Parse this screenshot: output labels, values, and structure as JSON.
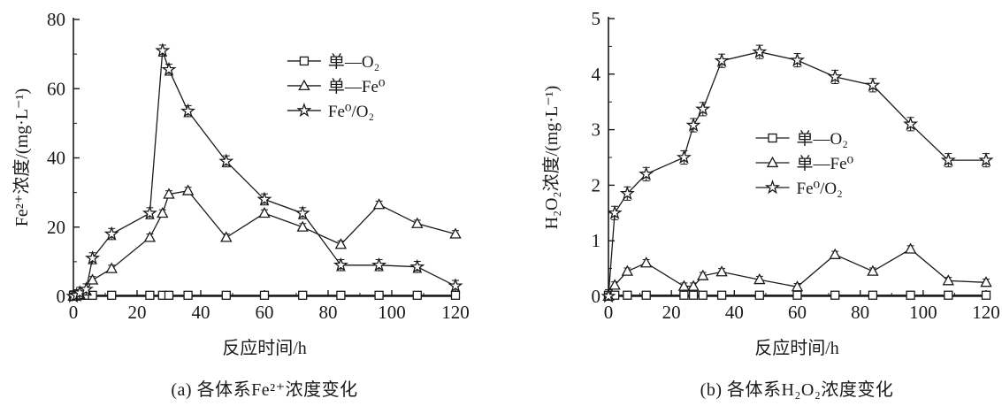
{
  "figure": {
    "background": "#ffffff",
    "ink_color": "#1a1a1a"
  },
  "chart_data": [
    {
      "type": "line",
      "panel": "a",
      "caption": "(a) 各体系Fe²⁺浓度变化",
      "xlabel": "反应时间/h",
      "ylabel": "Fe²⁺浓度/(mg·L⁻¹)",
      "xlim": [
        0,
        120
      ],
      "ylim": [
        0,
        80
      ],
      "xticks": [
        0,
        20,
        40,
        60,
        80,
        100,
        120
      ],
      "yticks": [
        0,
        20,
        40,
        60,
        80
      ],
      "grid": false,
      "legend_position": "inside-upper-middle",
      "legend_anchor": [
        0.56,
        0.15
      ],
      "x": [
        0,
        1,
        2,
        4,
        6,
        12,
        24,
        28,
        30,
        36,
        48,
        60,
        72,
        84,
        96,
        108,
        120
      ],
      "series": [
        {
          "name": "单—O₂",
          "marker": "square",
          "yerr": 0,
          "values": [
            0.3,
            0.3,
            0.3,
            0.3,
            0.3,
            0.3,
            0.3,
            0.3,
            0.3,
            0.3,
            0.3,
            0.3,
            0.3,
            0.3,
            0.3,
            0.3,
            0.3
          ]
        },
        {
          "name": "单—Fe⁰",
          "marker": "triangle",
          "yerr": 1.0,
          "values": [
            0,
            0.2,
            0.5,
            1.5,
            4.7,
            8,
            17,
            24,
            29.5,
            30.5,
            17,
            24,
            20,
            15,
            26.5,
            21,
            18
          ]
        },
        {
          "name": "Fe⁰/O₂",
          "marker": "star",
          "yerr": 1.6,
          "values": [
            0,
            0.3,
            1,
            2,
            11,
            18,
            24,
            71,
            65.5,
            53.5,
            39,
            28,
            24,
            9,
            9,
            8.5,
            3
          ]
        }
      ]
    },
    {
      "type": "line",
      "panel": "b",
      "caption": "(b) 各体系H₂O₂浓度变化",
      "xlabel": "反应时间/h",
      "ylabel": "H₂O₂浓度/(mg·L⁻¹)",
      "xlim": [
        0,
        120
      ],
      "ylim": [
        0,
        5
      ],
      "xticks": [
        0,
        20,
        40,
        60,
        80,
        100,
        120
      ],
      "yticks": [
        0,
        1,
        2,
        3,
        4,
        5
      ],
      "grid": false,
      "legend_position": "inside-middle-left",
      "legend_anchor": [
        0.39,
        0.43
      ],
      "x": [
        0,
        2,
        6,
        12,
        24,
        27,
        30,
        36,
        48,
        60,
        72,
        84,
        96,
        108,
        120
      ],
      "series": [
        {
          "name": "单—O₂",
          "marker": "square",
          "yerr": 0,
          "values": [
            0.02,
            0.02,
            0.02,
            0.02,
            0.02,
            0.02,
            0.02,
            0.02,
            0.02,
            0.02,
            0.02,
            0.02,
            0.02,
            0.02,
            0.02
          ]
        },
        {
          "name": "单—Fe⁰",
          "marker": "triangle",
          "yerr": 0.06,
          "values": [
            0,
            0.2,
            0.45,
            0.6,
            0.18,
            0.18,
            0.37,
            0.44,
            0.3,
            0.17,
            0.75,
            0.45,
            0.85,
            0.28,
            0.25
          ]
        },
        {
          "name": "Fe⁰/O₂",
          "marker": "star",
          "yerr": 0.12,
          "values": [
            0,
            1.5,
            1.85,
            2.2,
            2.5,
            3.08,
            3.37,
            4.24,
            4.4,
            4.25,
            3.95,
            3.8,
            3.1,
            2.45,
            2.45
          ]
        }
      ]
    }
  ]
}
